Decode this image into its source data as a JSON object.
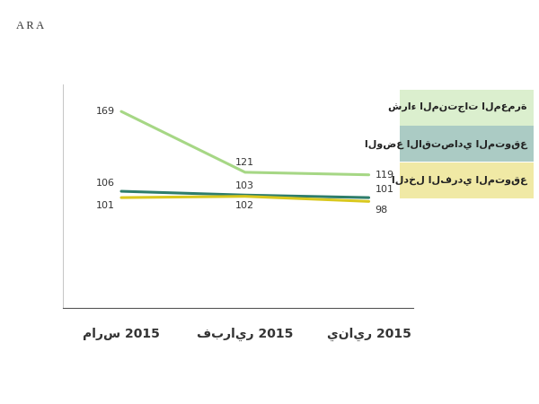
{
  "chart_data": {
    "type": "line",
    "categories": [
      "يناير 2015",
      "فبراير 2015",
      "مارس 2015"
    ],
    "series": [
      {
        "name": "شراء المنتجات المعمرة",
        "color": "#a6d785",
        "values": [
          119,
          121,
          169
        ]
      },
      {
        "name": "الوضع الاقتصادي المتوقع",
        "color": "#2e7d6b",
        "values": [
          101,
          103,
          106
        ]
      },
      {
        "name": "الدخل الفردي المتوقع",
        "color": "#d9c81e",
        "values": [
          98,
          102,
          101
        ]
      }
    ],
    "ylim": [
      14,
      190
    ],
    "yticks": [],
    "tick_labels": "x",
    "data_labels": true,
    "legend": "right",
    "annotations": [
      {
        "text": "A R A"
      }
    ]
  }
}
